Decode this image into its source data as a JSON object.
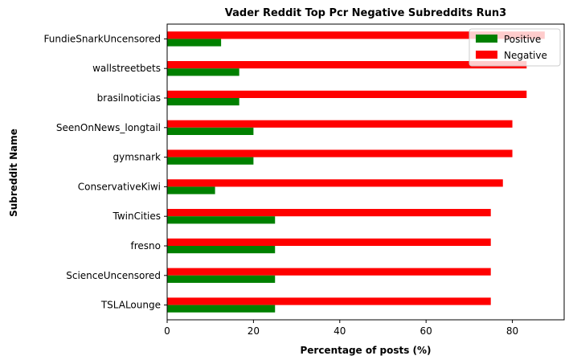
{
  "chart_data": {
    "type": "bar",
    "orientation": "horizontal",
    "title": "Vader Reddit Top Pcr Negative Subreddits Run3",
    "xlabel": "Percentage of posts (%)",
    "ylabel": "Subreddit Name",
    "xlim": [
      0,
      92
    ],
    "xticks": [
      0,
      20,
      40,
      60,
      80
    ],
    "categories": [
      "FundieSnarkUncensored",
      "wallstreetbets",
      "brasilnoticias",
      "SeenOnNews_longtail",
      "gymsnark",
      "ConservativeKiwi",
      "TwinCities",
      "fresno",
      "ScienceUncensored",
      "TSLALounge"
    ],
    "series": [
      {
        "name": "Positive",
        "color": "#008000",
        "values": [
          12.5,
          16.7,
          16.7,
          20,
          20,
          11.1,
          25,
          25,
          25,
          25
        ]
      },
      {
        "name": "Negative",
        "color": "#ff0000",
        "values": [
          87.5,
          83.3,
          83.3,
          80,
          80,
          77.8,
          75,
          75,
          75,
          75
        ]
      }
    ],
    "legend_position": "upper-right",
    "grid": false
  }
}
